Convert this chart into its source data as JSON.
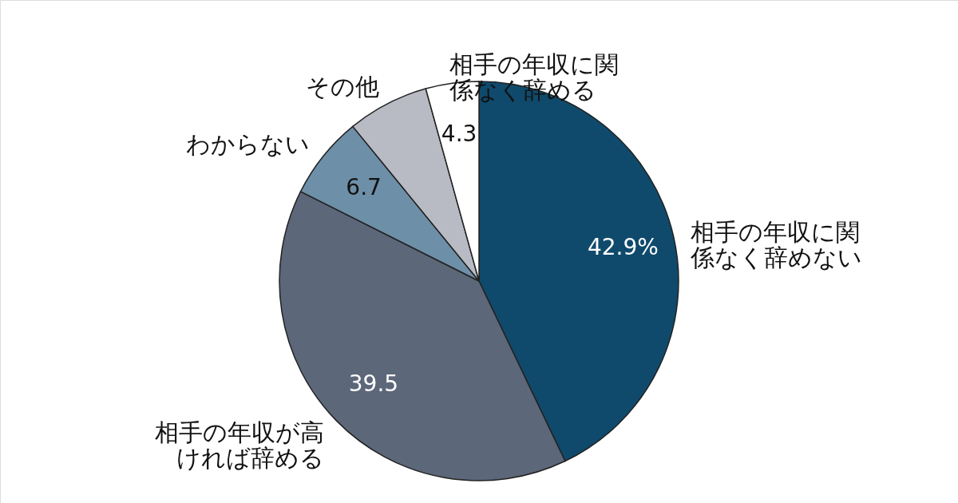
{
  "chart_data": {
    "type": "pie",
    "categories": [
      "相手の年収に関係なく辞めない",
      "相手の年収が高ければ辞める",
      "わからない",
      "その他",
      "相手の年収に関係なく辞める"
    ],
    "values": [
      42.9,
      39.5,
      6.7,
      6.6,
      4.3
    ],
    "colors": [
      "#0f4a6c",
      "#5c6779",
      "#6e8fa8",
      "#b8bbc3",
      "#ffffff"
    ],
    "value_labels": [
      "42.9%",
      "39.5",
      "6.7",
      null,
      "4.3"
    ],
    "legend": false
  }
}
